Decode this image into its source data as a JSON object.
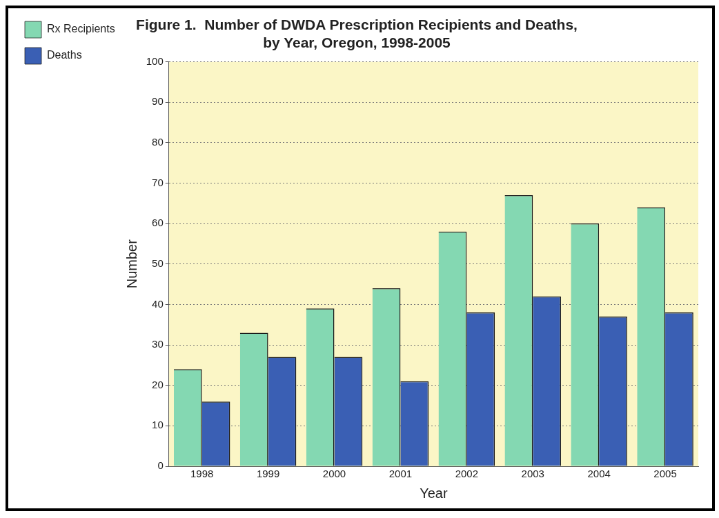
{
  "chart_data": {
    "type": "bar",
    "title": "Figure 1.  Number of DWDA Prescription Recipients and Deaths,\nby Year, Oregon, 1998-2005",
    "xlabel": "Year",
    "ylabel": "Number",
    "categories": [
      "1998",
      "1999",
      "2000",
      "2001",
      "2002",
      "2003",
      "2004",
      "2005"
    ],
    "series": [
      {
        "name": "Rx Recipients",
        "color": "#84d8b2",
        "values": [
          24,
          33,
          39,
          44,
          58,
          67,
          60,
          64
        ]
      },
      {
        "name": "Deaths",
        "color": "#3a5fb4",
        "values": [
          16,
          27,
          27,
          21,
          38,
          42,
          37,
          38
        ]
      }
    ],
    "ylim": [
      0,
      100
    ],
    "yticks": [
      0,
      10,
      20,
      30,
      40,
      50,
      60,
      70,
      80,
      90,
      100
    ],
    "grid": "y",
    "legend": "top left"
  }
}
